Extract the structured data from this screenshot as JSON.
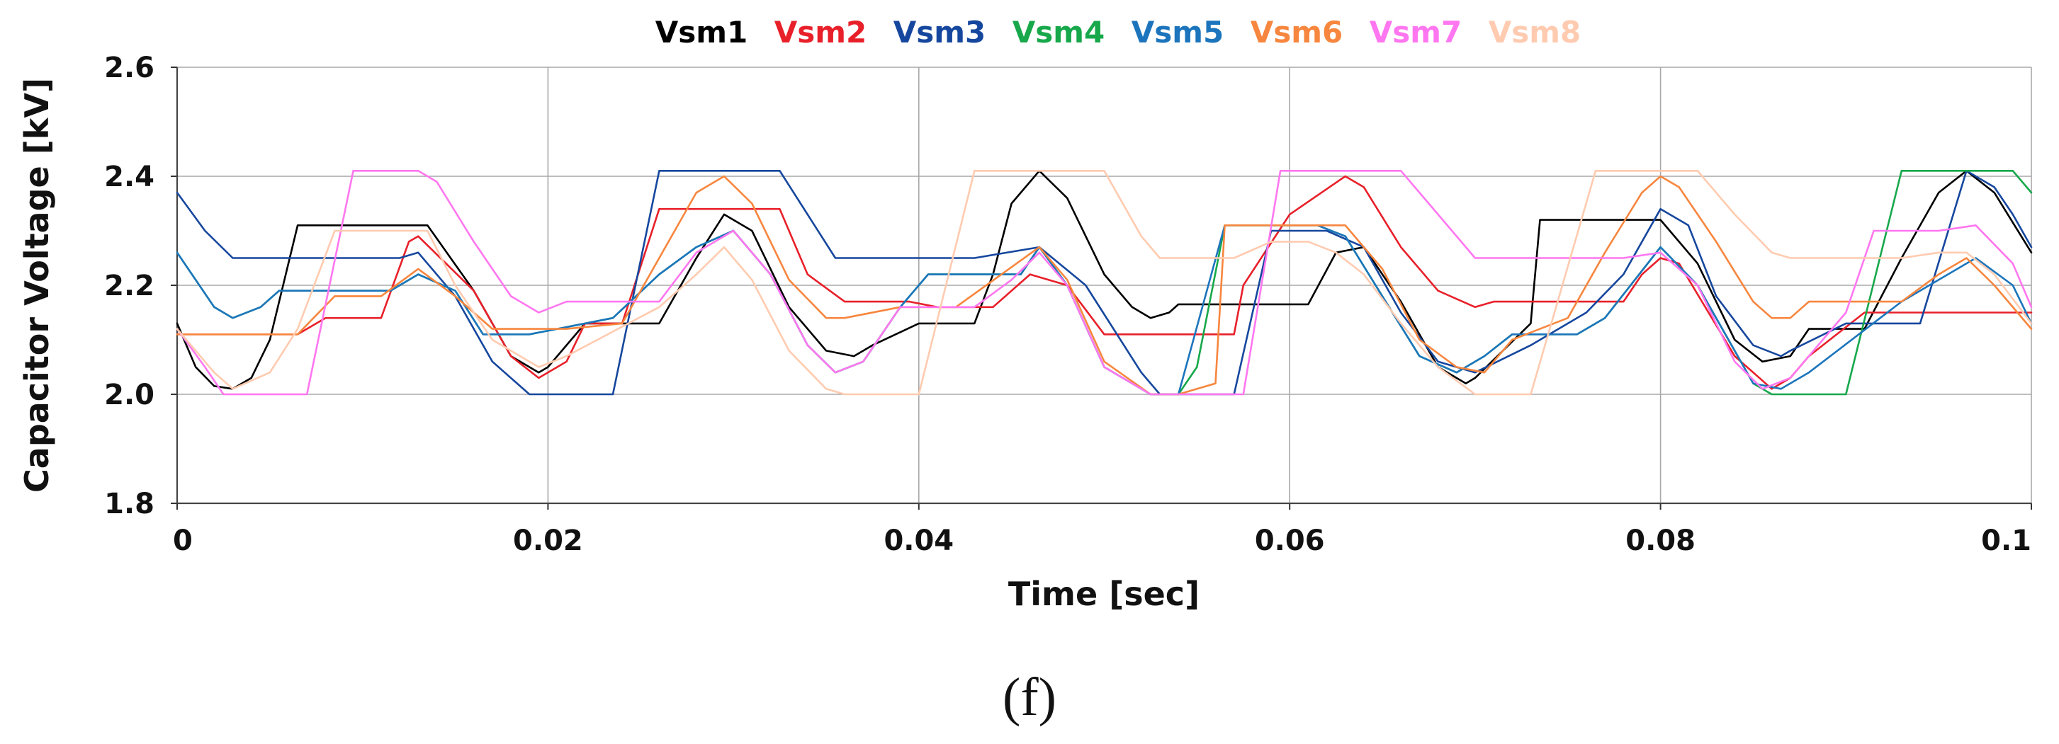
{
  "chart_data": {
    "type": "line",
    "title": "",
    "subfigure_label": "(f)",
    "xlabel": "Time  [sec]",
    "ylabel": "Capacitor  Voltage  [kV]",
    "xlim": [
      0,
      0.1
    ],
    "ylim": [
      1.8,
      2.6
    ],
    "xticks": [
      0,
      0.02,
      0.04,
      0.06,
      0.08,
      0.1
    ],
    "xtick_labels": [
      "0",
      "0.02",
      "0.04",
      "0.06",
      "0.08",
      "0.1"
    ],
    "yticks": [
      1.8,
      2.0,
      2.2,
      2.4,
      2.6
    ],
    "ytick_labels": [
      "1.8",
      "2.0",
      "2.2",
      "2.4",
      "2.6"
    ],
    "grid": true,
    "legend_position": "top-center",
    "legend": [
      "Vsm1",
      "Vsm2",
      "Vsm3",
      "Vsm4",
      "Vsm5",
      "Vsm6",
      "Vsm7",
      "Vsm8"
    ],
    "legend_colors": [
      "#000000",
      "#E8202A",
      "#16479E",
      "#17A84B",
      "#1C75BC",
      "#F7863E",
      "#FF77F0",
      "#FFCBB0"
    ],
    "series": [
      {
        "name": "Vsm1",
        "color": "#000000",
        "x": [
          0,
          0.001,
          0.002,
          0.003,
          0.004,
          0.005,
          0.0065,
          0.008,
          0.011,
          0.0135,
          0.016,
          0.018,
          0.0195,
          0.02,
          0.022,
          0.026,
          0.028,
          0.0295,
          0.031,
          0.033,
          0.035,
          0.0365,
          0.0375,
          0.04,
          0.043,
          0.044,
          0.045,
          0.0465,
          0.048,
          0.05,
          0.0515,
          0.0525,
          0.0535,
          0.054,
          0.058,
          0.061,
          0.0625,
          0.064,
          0.066,
          0.068,
          0.0695,
          0.07,
          0.073,
          0.0735,
          0.08,
          0.082,
          0.084,
          0.0855,
          0.087,
          0.088,
          0.091,
          0.093,
          0.095,
          0.0965,
          0.098,
          0.1
        ],
        "y": [
          2.13,
          2.05,
          2.015,
          2.01,
          2.03,
          2.1,
          2.31,
          2.31,
          2.31,
          2.31,
          2.19,
          2.07,
          2.04,
          2.05,
          2.13,
          2.13,
          2.25,
          2.33,
          2.3,
          2.16,
          2.08,
          2.07,
          2.09,
          2.13,
          2.13,
          2.22,
          2.35,
          2.41,
          2.36,
          2.22,
          2.16,
          2.14,
          2.15,
          2.165,
          2.165,
          2.165,
          2.26,
          2.27,
          2.17,
          2.05,
          2.02,
          2.03,
          2.13,
          2.32,
          2.32,
          2.24,
          2.1,
          2.06,
          2.07,
          2.12,
          2.12,
          2.25,
          2.37,
          2.41,
          2.37,
          2.26
        ]
      },
      {
        "name": "Vsm2",
        "color": "#E8202A",
        "x": [
          0,
          0.002,
          0.0065,
          0.008,
          0.011,
          0.0125,
          0.013,
          0.016,
          0.018,
          0.0195,
          0.021,
          0.022,
          0.024,
          0.026,
          0.03,
          0.0325,
          0.034,
          0.036,
          0.0395,
          0.041,
          0.044,
          0.046,
          0.048,
          0.05,
          0.052,
          0.057,
          0.0575,
          0.06,
          0.063,
          0.064,
          0.066,
          0.068,
          0.07,
          0.071,
          0.076,
          0.078,
          0.079,
          0.08,
          0.081,
          0.084,
          0.086,
          0.087,
          0.088,
          0.091,
          0.092,
          0.1
        ],
        "y": [
          2.11,
          2.11,
          2.11,
          2.14,
          2.14,
          2.28,
          2.29,
          2.19,
          2.07,
          2.03,
          2.06,
          2.13,
          2.13,
          2.34,
          2.34,
          2.34,
          2.22,
          2.17,
          2.17,
          2.16,
          2.16,
          2.22,
          2.2,
          2.11,
          2.11,
          2.11,
          2.2,
          2.33,
          2.4,
          2.38,
          2.27,
          2.19,
          2.16,
          2.17,
          2.17,
          2.17,
          2.22,
          2.25,
          2.24,
          2.07,
          2.01,
          2.03,
          2.07,
          2.15,
          2.15,
          2.15
        ]
      },
      {
        "name": "Vsm3",
        "color": "#16479E",
        "x": [
          0,
          0.0015,
          0.003,
          0.005,
          0.008,
          0.012,
          0.013,
          0.015,
          0.017,
          0.019,
          0.0235,
          0.026,
          0.0325,
          0.0355,
          0.039,
          0.043,
          0.0465,
          0.049,
          0.052,
          0.053,
          0.057,
          0.059,
          0.062,
          0.064,
          0.066,
          0.068,
          0.07,
          0.073,
          0.076,
          0.078,
          0.08,
          0.0815,
          0.083,
          0.085,
          0.0865,
          0.087,
          0.09,
          0.094,
          0.0965,
          0.098,
          0.099,
          0.1
        ],
        "y": [
          2.37,
          2.3,
          2.25,
          2.25,
          2.25,
          2.25,
          2.26,
          2.18,
          2.06,
          2.0,
          2.0,
          2.41,
          2.41,
          2.25,
          2.25,
          2.25,
          2.27,
          2.2,
          2.04,
          2.0,
          2.0,
          2.3,
          2.3,
          2.27,
          2.15,
          2.06,
          2.04,
          2.09,
          2.15,
          2.22,
          2.34,
          2.31,
          2.18,
          2.09,
          2.07,
          2.08,
          2.13,
          2.13,
          2.41,
          2.38,
          2.33,
          2.27
        ]
      },
      {
        "name": "Vsm4",
        "color": "#17A84B",
        "x": [
          0,
          0.002,
          0.003,
          0.0045,
          0.0055,
          0.009,
          0.0115,
          0.013,
          0.015,
          0.0165,
          0.019,
          0.0235,
          0.026,
          0.028,
          0.03,
          0.032,
          0.034,
          0.0355,
          0.037,
          0.039,
          0.0405,
          0.0455,
          0.0465,
          0.048,
          0.05,
          0.0525,
          0.054,
          0.055,
          0.0565,
          0.06,
          0.0615,
          0.063,
          0.065,
          0.067,
          0.069,
          0.0705,
          0.072,
          0.074,
          0.0755,
          0.077,
          0.08,
          0.082,
          0.085,
          0.086,
          0.09,
          0.093,
          0.097,
          0.099,
          0.1
        ],
        "y": [
          2.26,
          2.16,
          2.14,
          2.16,
          2.19,
          2.19,
          2.19,
          2.22,
          2.19,
          2.11,
          2.11,
          2.14,
          2.22,
          2.27,
          2.3,
          2.22,
          2.09,
          2.04,
          2.06,
          2.16,
          2.22,
          2.22,
          2.27,
          2.2,
          2.05,
          2.0,
          2.0,
          2.05,
          2.31,
          2.31,
          2.31,
          2.29,
          2.18,
          2.07,
          2.04,
          2.07,
          2.11,
          2.11,
          2.11,
          2.14,
          2.27,
          2.2,
          2.02,
          2.0,
          2.0,
          2.41,
          2.41,
          2.41,
          2.37
        ]
      },
      {
        "name": "Vsm5",
        "color": "#1C75BC",
        "x": [
          0,
          0.002,
          0.003,
          0.0045,
          0.0055,
          0.009,
          0.0115,
          0.013,
          0.015,
          0.0165,
          0.019,
          0.0235,
          0.026,
          0.028,
          0.03,
          0.032,
          0.034,
          0.0355,
          0.037,
          0.039,
          0.0405,
          0.0455,
          0.0465,
          0.048,
          0.05,
          0.0525,
          0.054,
          0.0565,
          0.06,
          0.0615,
          0.063,
          0.065,
          0.067,
          0.069,
          0.0705,
          0.072,
          0.0755,
          0.077,
          0.08,
          0.082,
          0.085,
          0.0865,
          0.088,
          0.093,
          0.095,
          0.097,
          0.099,
          0.1
        ],
        "y": [
          2.26,
          2.16,
          2.14,
          2.16,
          2.19,
          2.19,
          2.19,
          2.22,
          2.19,
          2.11,
          2.11,
          2.14,
          2.22,
          2.27,
          2.3,
          2.22,
          2.09,
          2.04,
          2.06,
          2.16,
          2.22,
          2.22,
          2.27,
          2.2,
          2.05,
          2.0,
          2.0,
          2.31,
          2.31,
          2.31,
          2.29,
          2.18,
          2.07,
          2.04,
          2.07,
          2.11,
          2.11,
          2.14,
          2.27,
          2.2,
          2.02,
          2.01,
          2.04,
          2.17,
          2.21,
          2.25,
          2.2,
          2.13
        ]
      },
      {
        "name": "Vsm6",
        "color": "#F7863E",
        "x": [
          0,
          0.0025,
          0.0065,
          0.0085,
          0.011,
          0.013,
          0.015,
          0.017,
          0.019,
          0.021,
          0.024,
          0.026,
          0.028,
          0.0295,
          0.031,
          0.033,
          0.035,
          0.036,
          0.039,
          0.042,
          0.0465,
          0.048,
          0.05,
          0.0525,
          0.054,
          0.056,
          0.0565,
          0.061,
          0.062,
          0.063,
          0.065,
          0.067,
          0.069,
          0.0705,
          0.072,
          0.075,
          0.077,
          0.079,
          0.08,
          0.081,
          0.083,
          0.085,
          0.086,
          0.087,
          0.088,
          0.091,
          0.093,
          0.095,
          0.0965,
          0.098,
          0.1
        ],
        "y": [
          2.11,
          2.11,
          2.11,
          2.18,
          2.18,
          2.23,
          2.18,
          2.12,
          2.12,
          2.12,
          2.13,
          2.25,
          2.37,
          2.4,
          2.35,
          2.21,
          2.14,
          2.14,
          2.16,
          2.16,
          2.27,
          2.21,
          2.06,
          2.0,
          2.0,
          2.02,
          2.31,
          2.31,
          2.31,
          2.31,
          2.23,
          2.1,
          2.05,
          2.04,
          2.1,
          2.14,
          2.26,
          2.37,
          2.4,
          2.38,
          2.28,
          2.17,
          2.14,
          2.14,
          2.17,
          2.17,
          2.17,
          2.22,
          2.25,
          2.2,
          2.12
        ]
      },
      {
        "name": "Vsm7",
        "color": "#FF77F0",
        "x": [
          0,
          0.0015,
          0.0025,
          0.007,
          0.0095,
          0.013,
          0.014,
          0.016,
          0.018,
          0.0195,
          0.021,
          0.023,
          0.026,
          0.028,
          0.03,
          0.032,
          0.034,
          0.0355,
          0.037,
          0.039,
          0.0405,
          0.043,
          0.045,
          0.0465,
          0.048,
          0.05,
          0.0525,
          0.054,
          0.0575,
          0.0595,
          0.0625,
          0.0645,
          0.066,
          0.068,
          0.07,
          0.073,
          0.076,
          0.078,
          0.08,
          0.082,
          0.084,
          0.0855,
          0.087,
          0.09,
          0.0915,
          0.095,
          0.097,
          0.099,
          0.1
        ],
        "y": [
          2.12,
          2.05,
          2.0,
          2.0,
          2.41,
          2.41,
          2.39,
          2.28,
          2.18,
          2.15,
          2.17,
          2.17,
          2.17,
          2.26,
          2.3,
          2.22,
          2.09,
          2.04,
          2.06,
          2.16,
          2.16,
          2.16,
          2.21,
          2.26,
          2.2,
          2.05,
          2.0,
          2.0,
          2.0,
          2.41,
          2.41,
          2.41,
          2.41,
          2.33,
          2.25,
          2.25,
          2.25,
          2.25,
          2.26,
          2.2,
          2.06,
          2.01,
          2.03,
          2.15,
          2.3,
          2.3,
          2.31,
          2.24,
          2.16
        ]
      },
      {
        "name": "Vsm8",
        "color": "#FFCBB0",
        "x": [
          0,
          0.002,
          0.003,
          0.005,
          0.0065,
          0.0085,
          0.011,
          0.0135,
          0.015,
          0.017,
          0.0195,
          0.021,
          0.026,
          0.028,
          0.0295,
          0.031,
          0.033,
          0.035,
          0.036,
          0.04,
          0.043,
          0.049,
          0.05,
          0.052,
          0.053,
          0.057,
          0.059,
          0.061,
          0.0625,
          0.064,
          0.066,
          0.068,
          0.07,
          0.073,
          0.0765,
          0.082,
          0.084,
          0.086,
          0.087,
          0.09,
          0.093,
          0.095,
          0.0965,
          0.098,
          0.1
        ],
        "y": [
          2.12,
          2.04,
          2.01,
          2.04,
          2.12,
          2.3,
          2.3,
          2.3,
          2.2,
          2.1,
          2.05,
          2.07,
          2.16,
          2.22,
          2.27,
          2.21,
          2.08,
          2.01,
          2.0,
          2.0,
          2.41,
          2.41,
          2.41,
          2.29,
          2.25,
          2.25,
          2.28,
          2.28,
          2.26,
          2.22,
          2.13,
          2.05,
          2.0,
          2.0,
          2.41,
          2.41,
          2.33,
          2.26,
          2.25,
          2.25,
          2.25,
          2.26,
          2.26,
          2.22,
          2.13
        ]
      }
    ]
  }
}
